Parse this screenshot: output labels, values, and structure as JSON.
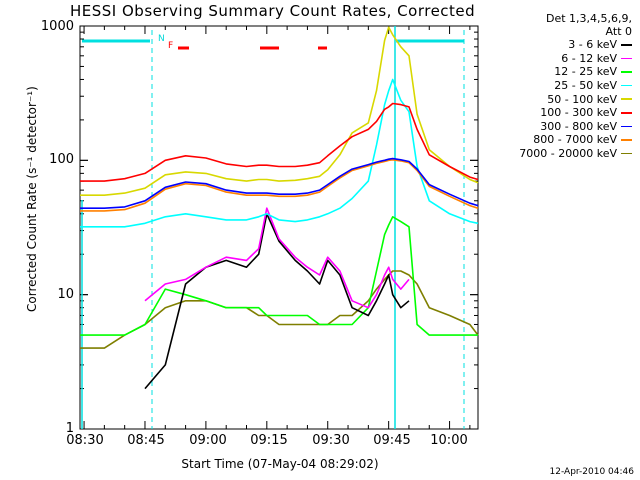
{
  "chart_data": {
    "type": "line",
    "title": "HESSI Observing Summary Count Rates, Corrected",
    "xlabel": "Start Time (07-May-04 08:29:02)",
    "ylabel": "Corrected Count Rate (s⁻¹ detector⁻¹)",
    "ylog": true,
    "ylim": [
      1,
      1000
    ],
    "xlim": [
      "08:29",
      "10:07"
    ],
    "x_ticks": [
      "08:30",
      "08:45",
      "09:00",
      "09:15",
      "09:30",
      "09:45",
      "10:00"
    ],
    "y_ticks": [
      "1",
      "10",
      "100",
      "1000"
    ],
    "legend_header": [
      "Det 1,3,4,5,6,9,",
      "Att 0"
    ],
    "flags": [
      "N",
      "F"
    ],
    "x": [
      "08:29",
      "08:35",
      "08:40",
      "08:45",
      "08:50",
      "08:55",
      "09:00",
      "09:05",
      "09:10",
      "09:13",
      "09:15",
      "09:18",
      "09:22",
      "09:25",
      "09:28",
      "09:30",
      "09:33",
      "09:36",
      "09:40",
      "09:42",
      "09:44",
      "09:45",
      "09:46",
      "09:48",
      "09:50",
      "09:52",
      "09:55",
      "10:00",
      "10:05",
      "10:07"
    ],
    "series": [
      {
        "name": "3 - 6 keV",
        "color": "#000000",
        "values": [
          null,
          null,
          null,
          2,
          3,
          12,
          16,
          18,
          16,
          20,
          40,
          25,
          18,
          15,
          12,
          18,
          14,
          8,
          7,
          9,
          12,
          14,
          10,
          8,
          9,
          null,
          null,
          null,
          null,
          null
        ]
      },
      {
        "name": "6 - 12 keV",
        "color": "#ff00ff",
        "values": [
          null,
          null,
          null,
          9,
          12,
          13,
          16,
          19,
          18,
          22,
          44,
          26,
          19,
          16,
          14,
          19,
          15,
          9,
          8,
          10,
          14,
          16,
          13,
          11,
          13,
          null,
          null,
          null,
          null,
          null
        ]
      },
      {
        "name": "12 - 25 keV",
        "color": "#00ff00",
        "values": [
          5,
          5,
          5,
          6,
          11,
          10,
          9,
          8,
          8,
          8,
          7,
          7,
          7,
          7,
          6,
          6,
          6,
          6,
          8,
          15,
          28,
          33,
          38,
          35,
          32,
          6,
          5,
          5,
          5,
          5
        ]
      },
      {
        "name": "25 - 50 keV",
        "color": "#00ffff",
        "values": [
          32,
          32,
          32,
          34,
          38,
          40,
          38,
          36,
          36,
          38,
          40,
          36,
          35,
          36,
          38,
          40,
          44,
          52,
          70,
          130,
          260,
          330,
          400,
          280,
          230,
          90,
          50,
          40,
          35,
          34
        ]
      },
      {
        "name": "50 - 100 keV",
        "color": "#d8d800",
        "values": [
          55,
          55,
          57,
          62,
          78,
          82,
          80,
          73,
          70,
          72,
          72,
          70,
          71,
          73,
          76,
          85,
          110,
          160,
          190,
          330,
          780,
          980,
          860,
          700,
          600,
          220,
          120,
          90,
          72,
          68
        ]
      },
      {
        "name": "100 - 300 keV",
        "color": "#ff0000",
        "values": [
          70,
          70,
          73,
          80,
          100,
          108,
          104,
          94,
          90,
          92,
          92,
          90,
          90,
          92,
          96,
          108,
          128,
          150,
          170,
          195,
          240,
          250,
          265,
          260,
          250,
          170,
          110,
          90,
          75,
          72
        ]
      },
      {
        "name": "300 - 800 keV",
        "color": "#0000ff",
        "values": [
          44,
          44,
          45,
          50,
          63,
          69,
          67,
          60,
          57,
          57,
          57,
          56,
          56,
          57,
          60,
          66,
          76,
          86,
          93,
          97,
          100,
          102,
          103,
          101,
          98,
          86,
          66,
          56,
          48,
          46
        ]
      },
      {
        "name": "800 - 7000 keV",
        "color": "#ff8000",
        "values": [
          42,
          42,
          43,
          48,
          61,
          67,
          65,
          58,
          55,
          55,
          55,
          54,
          54,
          55,
          58,
          64,
          74,
          84,
          91,
          95,
          98,
          100,
          101,
          99,
          96,
          84,
          64,
          54,
          46,
          44
        ]
      },
      {
        "name": "7000 - 20000 keV",
        "color": "#7f7f00",
        "values": [
          4,
          4,
          5,
          6,
          8,
          9,
          9,
          8,
          8,
          7,
          7,
          6,
          6,
          6,
          6,
          6,
          7,
          7,
          9,
          11,
          13,
          14,
          15,
          15,
          14,
          12,
          8,
          7,
          6,
          5
        ]
      }
    ]
  },
  "footer": {
    "date": "12-Apr-2010 04:46"
  }
}
